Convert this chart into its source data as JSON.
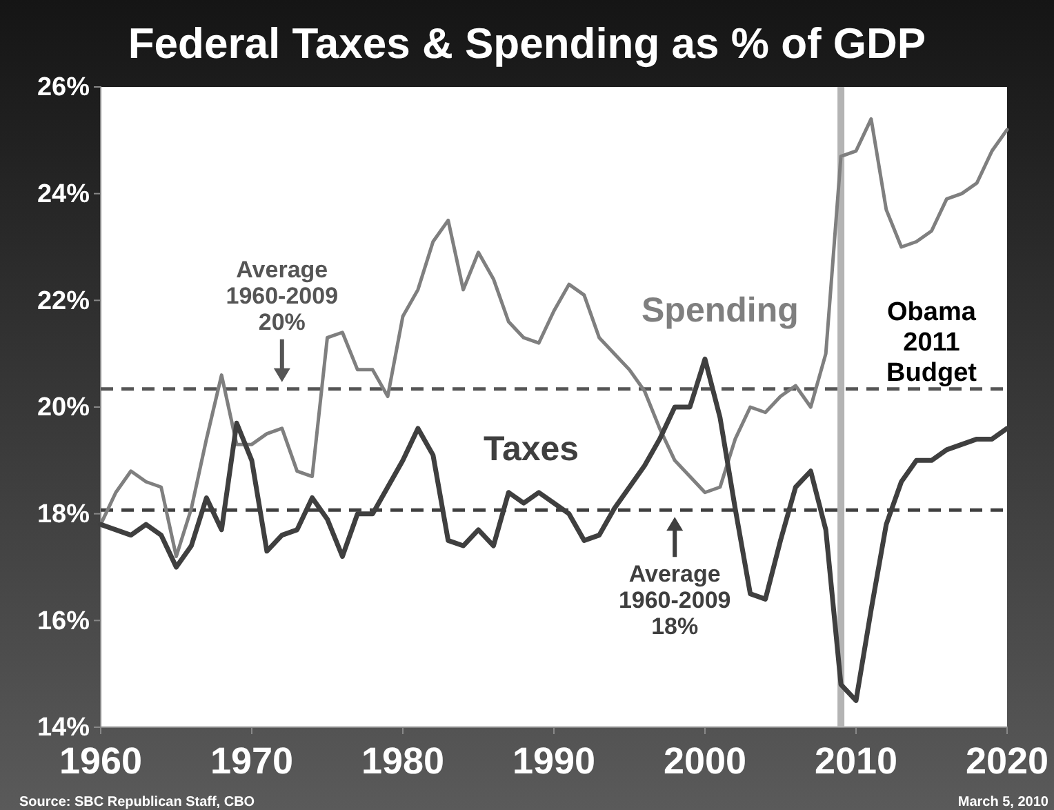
{
  "chart_data": {
    "type": "line",
    "title": "Federal Taxes & Spending as % of GDP",
    "x": [
      1960,
      1961,
      1962,
      1963,
      1964,
      1965,
      1966,
      1967,
      1968,
      1969,
      1970,
      1971,
      1972,
      1973,
      1974,
      1975,
      1976,
      1977,
      1978,
      1979,
      1980,
      1981,
      1982,
      1983,
      1984,
      1985,
      1986,
      1987,
      1988,
      1989,
      1990,
      1991,
      1992,
      1993,
      1994,
      1995,
      1996,
      1997,
      1998,
      1999,
      2000,
      2001,
      2002,
      2003,
      2004,
      2005,
      2006,
      2007,
      2008,
      2009,
      2010,
      2011,
      2012,
      2013,
      2014,
      2015,
      2016,
      2017,
      2018,
      2019,
      2020
    ],
    "series": [
      {
        "name": "Spending",
        "color": "#7f7f7f",
        "values": [
          17.8,
          18.4,
          18.8,
          18.6,
          18.5,
          17.2,
          18.1,
          19.4,
          20.6,
          19.3,
          19.3,
          19.5,
          19.6,
          18.8,
          18.7,
          21.3,
          21.4,
          20.7,
          20.7,
          20.2,
          21.7,
          22.2,
          23.1,
          23.5,
          22.2,
          22.9,
          22.4,
          21.6,
          21.3,
          21.2,
          21.8,
          22.3,
          22.1,
          21.3,
          21.0,
          20.7,
          20.3,
          19.6,
          19.0,
          18.7,
          18.4,
          18.5,
          19.4,
          20.0,
          19.9,
          20.2,
          20.4,
          20.0,
          21.0,
          24.7,
          24.8,
          25.4,
          23.7,
          23.0,
          23.1,
          23.3,
          23.9,
          24.0,
          24.2,
          24.8,
          25.2
        ]
      },
      {
        "name": "Taxes",
        "color": "#3f3f3f",
        "values": [
          17.8,
          17.7,
          17.6,
          17.8,
          17.6,
          17.0,
          17.4,
          18.3,
          17.7,
          19.7,
          19.0,
          17.3,
          17.6,
          17.7,
          18.3,
          17.9,
          17.2,
          18.0,
          18.0,
          18.5,
          19.0,
          19.6,
          19.1,
          17.5,
          17.4,
          17.7,
          17.4,
          18.4,
          18.2,
          18.4,
          18.2,
          18.0,
          17.5,
          17.6,
          18.1,
          18.5,
          18.9,
          19.4,
          20.0,
          20.0,
          20.9,
          19.8,
          18.1,
          16.5,
          16.4,
          17.5,
          18.5,
          18.8,
          17.7,
          14.8,
          14.5,
          16.2,
          17.8,
          18.6,
          19.0,
          19.0,
          19.2,
          19.3,
          19.4,
          19.4,
          19.6
        ]
      }
    ],
    "xlim": [
      1960,
      2020
    ],
    "xticks": [
      1960,
      1970,
      1980,
      1990,
      2000,
      2010,
      2020
    ],
    "ylim": [
      14,
      26
    ],
    "yticks": [
      {
        "value": 14,
        "label": "14%"
      },
      {
        "value": 16,
        "label": "16%"
      },
      {
        "value": 18,
        "label": "18%"
      },
      {
        "value": 20,
        "label": "20%"
      },
      {
        "value": 22,
        "label": "22%"
      },
      {
        "value": 24,
        "label": "24%"
      },
      {
        "value": 26,
        "label": "26%"
      }
    ],
    "ref_lines": [
      {
        "axis": "y",
        "value": 20.34,
        "color": "#555555",
        "line_style": "dashed"
      },
      {
        "axis": "y",
        "value": 18.07,
        "color": "#3f3f3f",
        "line_style": "dashed"
      },
      {
        "axis": "x",
        "value": 2009,
        "label": "Obama\n2011\nBudget",
        "color": "#b4b4b4",
        "line_style": "solid"
      }
    ],
    "annotations": [
      {
        "text": "Average\n1960-2009\n20%",
        "x": 1972,
        "y": 20.34
      },
      {
        "text": "Average\n1960-2009\n18%",
        "x": 1998,
        "y": 18.07
      },
      "Source: SBC Republican Staff, CBO",
      "March 5, 2010"
    ],
    "legend": false,
    "grid": false,
    "line_style": "solid",
    "marker": "none"
  }
}
